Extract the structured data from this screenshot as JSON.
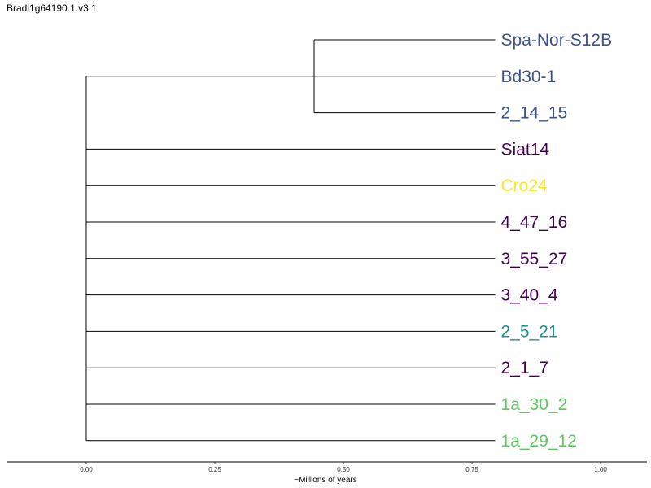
{
  "title": "Bradi1g64190.1.v3.1",
  "colors": {
    "blue": "#3b528b",
    "purple": "#440154",
    "yellow": "#fde725",
    "teal": "#21918c",
    "green": "#5ec962",
    "branch": "#000000"
  },
  "chart_data": {
    "type": "dendrogram",
    "xlabel": "~Millions of years",
    "xlim": [
      -0.155,
      1.09
    ],
    "ticks": [
      0.0,
      0.25,
      0.5,
      0.75,
      1.0
    ],
    "tick_labels": [
      "0.00",
      "0.25",
      "0.50",
      "0.75",
      "1.00"
    ],
    "leaf_x": 0.795,
    "tree": {
      "height": 0.795,
      "children": [
        {
          "height": 0.352,
          "children": [
            {
              "label": "Spa-Nor-S12B",
              "color": "blue"
            },
            {
              "label": "Bd30-1",
              "color": "blue"
            },
            {
              "label": "2_14_15",
              "color": "blue"
            }
          ]
        },
        {
          "label": "Siat14",
          "color": "purple"
        },
        {
          "label": "Cro24",
          "color": "yellow"
        },
        {
          "label": "4_47_16",
          "color": "purple"
        },
        {
          "label": "3_55_27",
          "color": "purple"
        },
        {
          "label": "3_40_4",
          "color": "purple"
        },
        {
          "label": "2_5_21",
          "color": "teal"
        },
        {
          "label": "2_1_7",
          "color": "purple"
        },
        {
          "label": "1a_30_2",
          "color": "green"
        },
        {
          "label": "1a_29_12",
          "color": "green"
        }
      ]
    }
  }
}
